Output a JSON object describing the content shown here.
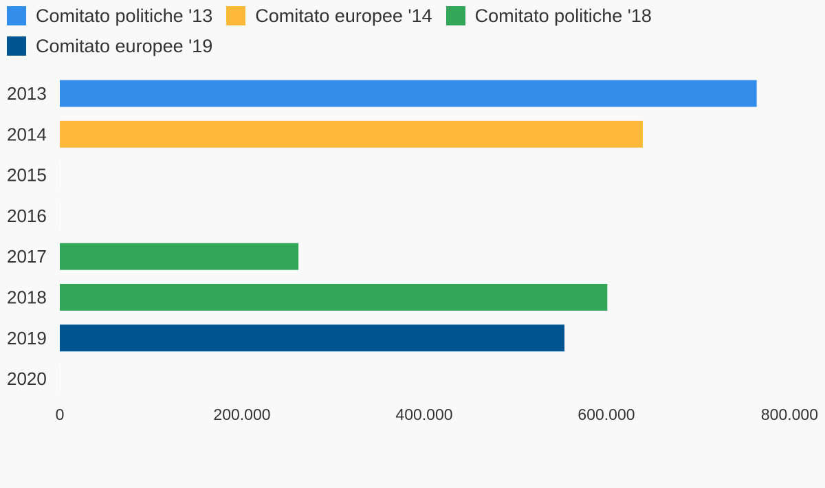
{
  "chart_data": {
    "type": "bar",
    "orientation": "horizontal",
    "title": "",
    "xlabel": "",
    "ylabel": "",
    "categories": [
      "2013",
      "2014",
      "2015",
      "2016",
      "2017",
      "2018",
      "2019",
      "2020"
    ],
    "series": [
      {
        "name": "Comitato politiche '13",
        "color": "#338deb",
        "values": [
          765000,
          null,
          null,
          null,
          null,
          null,
          null,
          null
        ]
      },
      {
        "name": "Comitato europee '14",
        "color": "#ffb93a",
        "values": [
          null,
          640000,
          null,
          null,
          null,
          null,
          null,
          null
        ]
      },
      {
        "name": "Comitato politiche '18",
        "color": "#34a65a",
        "values": [
          null,
          null,
          0,
          0,
          262000,
          601000,
          null,
          null
        ]
      },
      {
        "name": "Comitato europee '19",
        "color": "#005591",
        "values": [
          null,
          null,
          null,
          null,
          null,
          null,
          554000,
          0
        ]
      }
    ],
    "xlim": [
      0,
      800000
    ],
    "xticks": [
      {
        "value": 0,
        "label": "0"
      },
      {
        "value": 200000,
        "label": "200.000"
      },
      {
        "value": 400000,
        "label": "400.000"
      },
      {
        "value": 600000,
        "label": "600.000"
      },
      {
        "value": 800000,
        "label": "800.000"
      }
    ],
    "grid": false,
    "legend_position": "top-left"
  }
}
